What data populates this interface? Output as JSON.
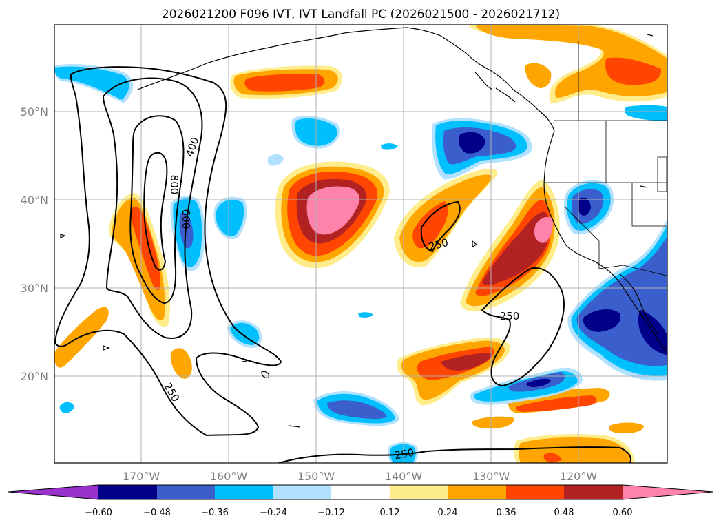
{
  "title": "2026021200 F096 IVT, IVT Landfall PC (2026021500 - 2026021712)",
  "colors": {
    "c1": "#9932cc",
    "c2": "#00008b",
    "c3": "#3a5fcd",
    "c4": "#00bfff",
    "c5": "#b0e2ff",
    "c6": "#ffffff",
    "c7": "#ffec8b",
    "c8": "#ffa500",
    "c9": "#ff4500",
    "c10": "#b22222",
    "c11": "#ff82ab"
  },
  "lat_labels": [
    "50°N",
    "40°N",
    "30°N",
    "20°N"
  ],
  "lon_labels": [
    "170°W",
    "160°W",
    "150°W",
    "140°W",
    "130°W",
    "120°W"
  ],
  "colorbar": {
    "ticks": [
      "−0.60",
      "−0.48",
      "−0.36",
      "−0.24",
      "−0.12",
      "0.12",
      "0.24",
      "0.36",
      "0.48",
      "0.60"
    ]
  },
  "contour_labels": [
    "800",
    "600",
    "400",
    "250",
    "250",
    "250",
    "250"
  ]
}
